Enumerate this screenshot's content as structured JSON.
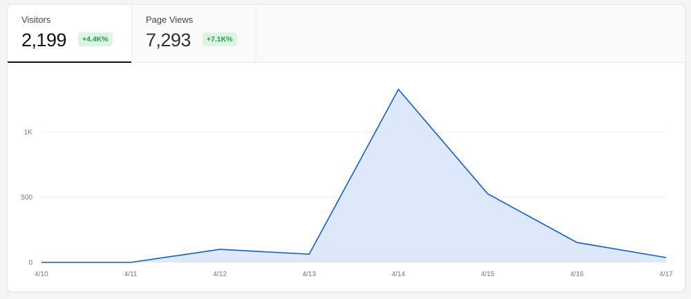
{
  "tabs": [
    {
      "label": "Visitors",
      "value": "2,199",
      "change": "+4.4K%",
      "active": true
    },
    {
      "label": "Page Views",
      "value": "7,293",
      "change": "+7.1K%",
      "active": false
    }
  ],
  "colors": {
    "line": "#0b5ce0",
    "fill": "#dde8fa",
    "grid": "#ececec",
    "badge_text": "#1f9d4a",
    "badge_bg": "#dcf5e3"
  },
  "chart_data": {
    "type": "area",
    "categories": [
      "4/10",
      "4/11",
      "4/12",
      "4/13",
      "4/14",
      "4/15",
      "4/16",
      "4/17"
    ],
    "values": [
      0,
      0,
      100,
      63,
      1326,
      526,
      153,
      37
    ],
    "yticks": [
      {
        "value": 0,
        "label": "0"
      },
      {
        "value": 500,
        "label": "500"
      },
      {
        "value": 1000,
        "label": "1K"
      }
    ],
    "ylim": [
      0,
      1000
    ],
    "grid": true,
    "legend": "none"
  }
}
